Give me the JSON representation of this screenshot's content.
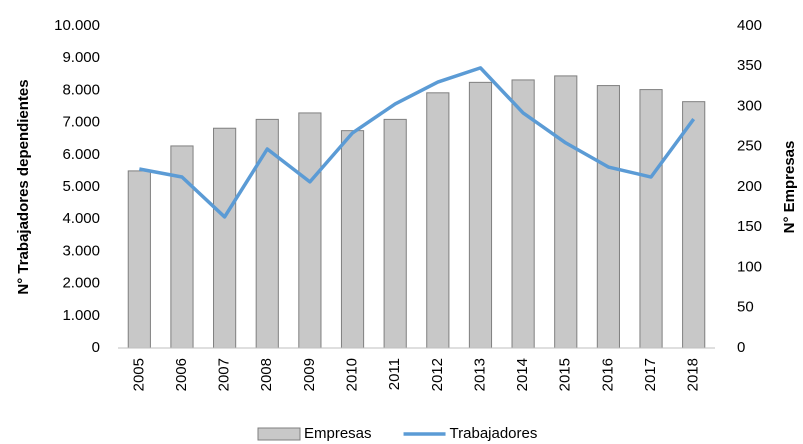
{
  "chart_data": {
    "type": "bar_line",
    "ylabel": "N° Trabajadores dependientes",
    "y2label": "N° Empresas",
    "categories": [
      "2005",
      "2006",
      "2007",
      "2008",
      "2009",
      "2010",
      "2011",
      "2012",
      "2013",
      "2014",
      "2015",
      "2016",
      "2017",
      "2018"
    ],
    "series": [
      {
        "name": "Empresas",
        "type": "bar",
        "axis": "y2",
        "color": "#c8c8c8",
        "values": [
          220,
          251,
          273,
          284,
          292,
          270,
          284,
          317,
          330,
          333,
          338,
          326,
          321,
          306
        ]
      },
      {
        "name": "Trabajadores",
        "type": "line",
        "axis": "y",
        "color": "#5b9bd5",
        "values": [
          5560,
          5310,
          4070,
          6180,
          5160,
          6680,
          7580,
          8260,
          8700,
          7300,
          6370,
          5620,
          5310,
          7110
        ]
      }
    ],
    "ylim": [
      0,
      10000
    ],
    "yticks": [
      0,
      {
        "value": 1000,
        "label": "1.000"
      },
      {
        "value": 2000,
        "label": "2.000"
      },
      {
        "value": 3000,
        "label": "3.000"
      },
      {
        "value": 4000,
        "label": "4.000"
      },
      {
        "value": 5000,
        "label": "5.000"
      },
      {
        "value": 6000,
        "label": "6.000"
      },
      {
        "value": 7000,
        "label": "7.000"
      },
      {
        "value": 8000,
        "label": "8.000"
      },
      {
        "value": 9000,
        "label": "9.000"
      },
      {
        "value": 10000,
        "label": "10.000"
      }
    ],
    "y2lim": [
      0,
      400
    ],
    "y2ticks": [
      0,
      50,
      100,
      150,
      200,
      250,
      300,
      350,
      400
    ],
    "legend": "bottom"
  }
}
